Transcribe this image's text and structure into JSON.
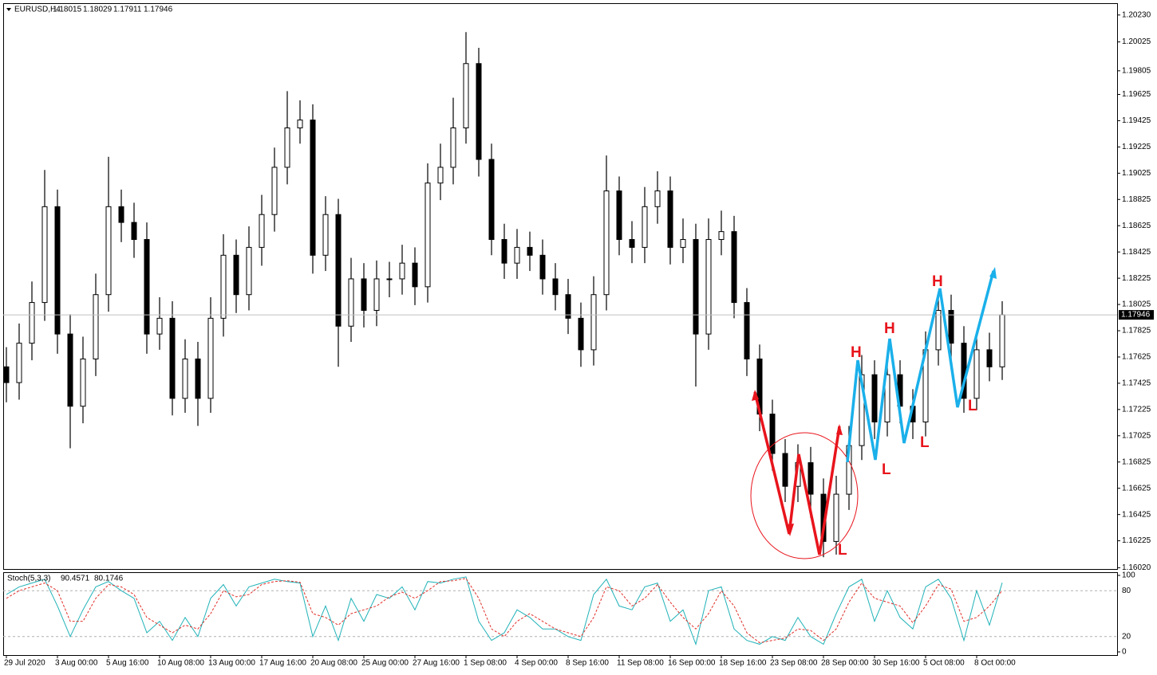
{
  "chart_data": [
    {
      "type": "candlestick",
      "title": "EURUSD,H4",
      "quote": [
        1.18015,
        1.18029,
        1.17911,
        1.17946
      ],
      "open": [
        1.1755,
        1.1743,
        1.1773,
        1.1804,
        1.1877,
        1.178,
        1.1725,
        1.1761,
        1.181,
        1.1877,
        1.1865,
        1.1852,
        1.178,
        1.1792,
        1.1731,
        1.1761,
        1.1731,
        1.1792,
        1.184,
        1.181,
        1.1846,
        1.1871,
        1.1907,
        1.1937,
        1.1943,
        1.184,
        1.1871,
        1.1786,
        1.1822,
        1.1798,
        1.1822,
        1.1822,
        1.1834,
        1.1816,
        1.1895,
        1.1907,
        1.1937,
        1.1986,
        1.1913,
        1.1852,
        1.1834,
        1.1846,
        1.184,
        1.1822,
        1.181,
        1.1792,
        1.1768,
        1.181,
        1.1889,
        1.1852,
        1.1846,
        1.1877,
        1.1889,
        1.1846,
        1.1852,
        1.178,
        1.1852,
        1.1858,
        1.1804,
        1.1761,
        1.1719,
        1.1689,
        1.1664,
        1.1682,
        1.1658,
        1.1622,
        1.1658,
        1.1695,
        1.1749,
        1.1713,
        1.1749,
        1.1725,
        1.1713,
        1.1768,
        1.1798,
        1.1773,
        1.1731,
        1.1768,
        1.1755
      ],
      "high": [
        1.177,
        1.1788,
        1.182,
        1.1905,
        1.189,
        1.1795,
        1.1778,
        1.1826,
        1.1915,
        1.189,
        1.188,
        1.1865,
        1.1808,
        1.1805,
        1.1776,
        1.1774,
        1.1808,
        1.1856,
        1.1852,
        1.1862,
        1.1886,
        1.1922,
        1.1965,
        1.1958,
        1.1955,
        1.1885,
        1.1883,
        1.1838,
        1.1834,
        1.1836,
        1.1835,
        1.1848,
        1.1846,
        1.191,
        1.1925,
        1.196,
        1.201,
        1.1998,
        1.1925,
        1.1864,
        1.186,
        1.1858,
        1.1852,
        1.1834,
        1.1822,
        1.1804,
        1.1824,
        1.1916,
        1.19,
        1.1866,
        1.1892,
        1.1904,
        1.19,
        1.1868,
        1.1864,
        1.1868,
        1.1874,
        1.187,
        1.1815,
        1.1772,
        1.173,
        1.17,
        1.1696,
        1.1694,
        1.167,
        1.1672,
        1.171,
        1.1764,
        1.176,
        1.1762,
        1.176,
        1.1738,
        1.1782,
        1.1812,
        1.181,
        1.1786,
        1.178,
        1.1781,
        1.1805
      ],
      "low": [
        1.1728,
        1.173,
        1.176,
        1.179,
        1.1765,
        1.1693,
        1.1712,
        1.1748,
        1.1797,
        1.185,
        1.1838,
        1.1765,
        1.1768,
        1.1718,
        1.172,
        1.171,
        1.172,
        1.1778,
        1.1796,
        1.1798,
        1.1832,
        1.1858,
        1.1894,
        1.1925,
        1.1826,
        1.1828,
        1.1755,
        1.1774,
        1.1785,
        1.1786,
        1.1808,
        1.181,
        1.1802,
        1.1804,
        1.1882,
        1.1894,
        1.1925,
        1.19,
        1.184,
        1.1822,
        1.1822,
        1.1828,
        1.181,
        1.1798,
        1.178,
        1.1755,
        1.1756,
        1.1798,
        1.184,
        1.1834,
        1.1834,
        1.1864,
        1.1833,
        1.1834,
        1.174,
        1.1768,
        1.184,
        1.1792,
        1.1748,
        1.1706,
        1.1676,
        1.1652,
        1.1652,
        1.164,
        1.161,
        1.1612,
        1.1646,
        1.1684,
        1.17,
        1.1702,
        1.1712,
        1.17,
        1.1702,
        1.1756,
        1.176,
        1.172,
        1.1722,
        1.1744,
        1.1745
      ],
      "close": [
        1.1743,
        1.1773,
        1.1804,
        1.1877,
        1.178,
        1.1725,
        1.1761,
        1.181,
        1.1877,
        1.1865,
        1.1852,
        1.178,
        1.1792,
        1.1731,
        1.1761,
        1.1731,
        1.1792,
        1.184,
        1.181,
        1.1846,
        1.1871,
        1.1907,
        1.1937,
        1.1943,
        1.184,
        1.1871,
        1.1786,
        1.1822,
        1.1798,
        1.1822,
        1.1822,
        1.1834,
        1.1816,
        1.1895,
        1.1907,
        1.1937,
        1.1986,
        1.1913,
        1.1852,
        1.1834,
        1.1846,
        1.184,
        1.1822,
        1.181,
        1.1792,
        1.1768,
        1.181,
        1.1889,
        1.1852,
        1.1846,
        1.1877,
        1.1889,
        1.1846,
        1.1852,
        1.178,
        1.1852,
        1.1858,
        1.1804,
        1.1761,
        1.1719,
        1.1689,
        1.1664,
        1.1682,
        1.1658,
        1.1622,
        1.1658,
        1.1695,
        1.1749,
        1.1713,
        1.1749,
        1.1725,
        1.1713,
        1.1768,
        1.1798,
        1.1773,
        1.1731,
        1.1768,
        1.1755,
        1.17946
      ],
      "xlim": [
        -0.25,
        87
      ],
      "xticks": [
        {
          "value": 0,
          "label": "29 Jul 2020"
        },
        {
          "value": 4,
          "label": "3 Aug 00:00"
        },
        {
          "value": 8,
          "label": "5 Aug 16:00"
        },
        {
          "value": 12,
          "label": "10 Aug 08:00"
        },
        {
          "value": 16,
          "label": "13 Aug 00:00"
        },
        {
          "value": 20,
          "label": "17 Aug 16:00"
        },
        {
          "value": 24,
          "label": "20 Aug 08:00"
        },
        {
          "value": 28,
          "label": "25 Aug 00:00"
        },
        {
          "value": 32,
          "label": "27 Aug 16:00"
        },
        {
          "value": 36,
          "label": "1 Sep 08:00"
        },
        {
          "value": 40,
          "label": "4 Sep 00:00"
        },
        {
          "value": 44,
          "label": "8 Sep 16:00"
        },
        {
          "value": 48,
          "label": "11 Sep 08:00"
        },
        {
          "value": 52,
          "label": "16 Sep 00:00"
        },
        {
          "value": 56,
          "label": "18 Sep 16:00"
        },
        {
          "value": 60,
          "label": "23 Sep 08:00"
        },
        {
          "value": 64,
          "label": "28 Sep 00:00"
        },
        {
          "value": 68,
          "label": "30 Sep 16:00"
        },
        {
          "value": 72,
          "label": "5 Oct 08:00"
        },
        {
          "value": 76,
          "label": "8 Oct 00:00"
        }
      ],
      "ylim": [
        1.1601,
        1.2032
      ],
      "yticks": [
        {
          "value": 1.2023,
          "label": "1.20230"
        },
        1.20025,
        1.19805,
        1.19625,
        1.19425,
        1.19225,
        1.19025,
        1.18825,
        1.18625,
        1.18425,
        1.18225,
        1.18025,
        1.17825,
        1.17625,
        1.17425,
        1.17225,
        1.17025,
        1.16825,
        1.16625,
        1.16425,
        1.16225,
        {
          "value": 1.1602,
          "label": "1.16020"
        }
      ],
      "annotations": [
        "H",
        "H",
        "H",
        "L",
        "L",
        "L",
        "L"
      ]
    },
    {
      "type": "line",
      "title": "Stoch(5,3,3)",
      "series": [
        {
          "color": "#20b2b8",
          "values": [
            75,
            85,
            90,
            95,
            60,
            20,
            55,
            85,
            92,
            80,
            70,
            25,
            40,
            15,
            45,
            20,
            70,
            88,
            60,
            85,
            90,
            95,
            92,
            90,
            20,
            60,
            15,
            70,
            40,
            75,
            70,
            85,
            55,
            92,
            90,
            95,
            98,
            40,
            15,
            25,
            55,
            45,
            30,
            30,
            20,
            15,
            75,
            95,
            60,
            55,
            85,
            90,
            40,
            55,
            10,
            80,
            85,
            30,
            15,
            10,
            20,
            15,
            45,
            20,
            10,
            50,
            85,
            95,
            40,
            80,
            45,
            30,
            85,
            95,
            70,
            15,
            80,
            35,
            90.4571
          ]
        },
        {
          "color": "#e0302a",
          "values": [
            70,
            80,
            85,
            90,
            80,
            40,
            40,
            70,
            88,
            85,
            75,
            45,
            35,
            25,
            35,
            30,
            50,
            80,
            72,
            75,
            88,
            92,
            93,
            91,
            50,
            45,
            35,
            50,
            55,
            60,
            72,
            78,
            70,
            80,
            92,
            93,
            96,
            70,
            30,
            20,
            40,
            50,
            40,
            30,
            25,
            20,
            45,
            85,
            80,
            60,
            70,
            88,
            65,
            45,
            30,
            50,
            80,
            60,
            25,
            12,
            15,
            18,
            30,
            28,
            15,
            30,
            65,
            90,
            70,
            65,
            60,
            38,
            60,
            88,
            82,
            40,
            45,
            60,
            80.1746
          ]
        }
      ],
      "ylim": [
        0,
        100
      ],
      "yticks": [
        100,
        80,
        20,
        0
      ]
    }
  ]
}
